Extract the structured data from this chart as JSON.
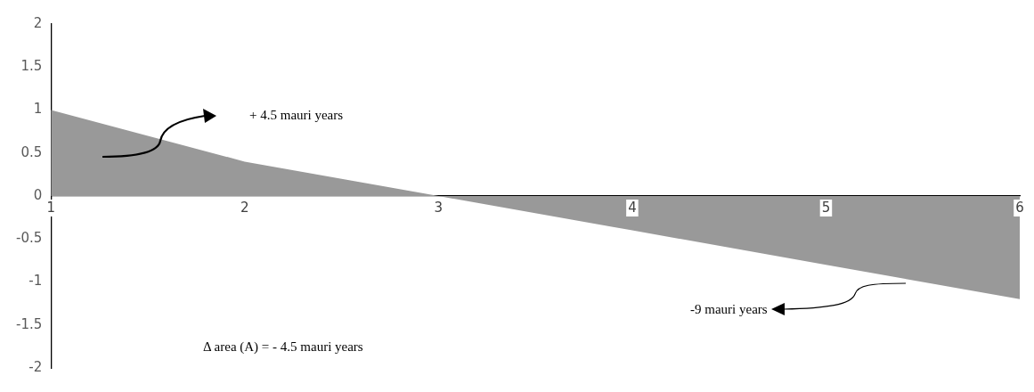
{
  "chart_data": {
    "type": "area",
    "x": [
      1,
      2,
      3,
      4,
      5,
      6
    ],
    "series": [
      {
        "color": "#999999",
        "values": [
          1,
          0.4,
          0,
          -0.4,
          -0.8,
          -1.2
        ]
      }
    ],
    "xlim": [
      1,
      6
    ],
    "xticks": [
      1,
      2,
      3,
      4,
      5,
      6
    ],
    "ylim": [
      -2,
      2
    ],
    "yticks": [
      -2,
      -1.5,
      -1,
      -0.5,
      0,
      0.5,
      1,
      1.5,
      2
    ],
    "grid": false,
    "legend": false,
    "annotations": [
      "+ 4.5 mauri years",
      "-9 mauri years",
      "Δ area (A) = - 4.5 mauri years"
    ]
  }
}
